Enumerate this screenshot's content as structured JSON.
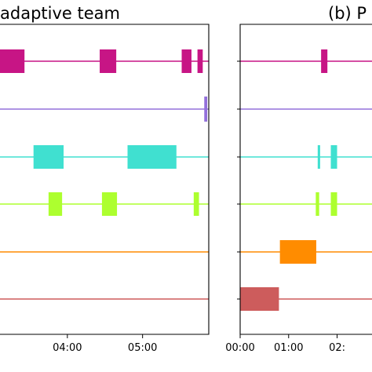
{
  "chart_data": [
    {
      "type": "timeline",
      "title": "adaptive team",
      "x_tick_labels": [
        "04:00",
        "05:00"
      ],
      "xlim_hours": [
        3.0,
        5.88
      ],
      "rows": [
        {
          "color": "#c71585",
          "segments": [
            [
              2.6,
              3.43
            ],
            [
              4.43,
              4.65
            ],
            [
              5.52,
              5.65
            ],
            [
              5.73,
              5.8
            ]
          ]
        },
        {
          "color": "#9370db",
          "segments": [
            [
              5.82,
              5.86
            ]
          ]
        },
        {
          "color": "#40e0d0",
          "segments": [
            [
              3.55,
              3.95
            ],
            [
              4.8,
              5.45
            ]
          ]
        },
        {
          "color": "#adff2f",
          "segments": [
            [
              3.75,
              3.93
            ],
            [
              4.46,
              4.66
            ],
            [
              5.68,
              5.75
            ]
          ]
        },
        {
          "color": "#ff8c00",
          "segments": []
        },
        {
          "color": "#cd5c5c",
          "segments": []
        }
      ]
    },
    {
      "type": "timeline",
      "title": "(b) P",
      "x_tick_labels": [
        "00:00",
        "01:00",
        "02:"
      ],
      "xlim_hours": [
        0.0,
        2.72
      ],
      "rows": [
        {
          "color": "#c71585",
          "segments": [
            [
              1.67,
              1.8
            ]
          ]
        },
        {
          "color": "#9370db",
          "segments": []
        },
        {
          "color": "#40e0d0",
          "segments": [
            [
              1.6,
              1.65
            ],
            [
              1.87,
              2.0
            ]
          ]
        },
        {
          "color": "#adff2f",
          "segments": [
            [
              1.56,
              1.63
            ],
            [
              1.87,
              2.0
            ]
          ]
        },
        {
          "color": "#ff8c00",
          "segments": [
            [
              0.82,
              1.57
            ]
          ]
        },
        {
          "color": "#cd5c5c",
          "segments": [
            [
              0.0,
              0.8
            ]
          ]
        }
      ]
    }
  ]
}
